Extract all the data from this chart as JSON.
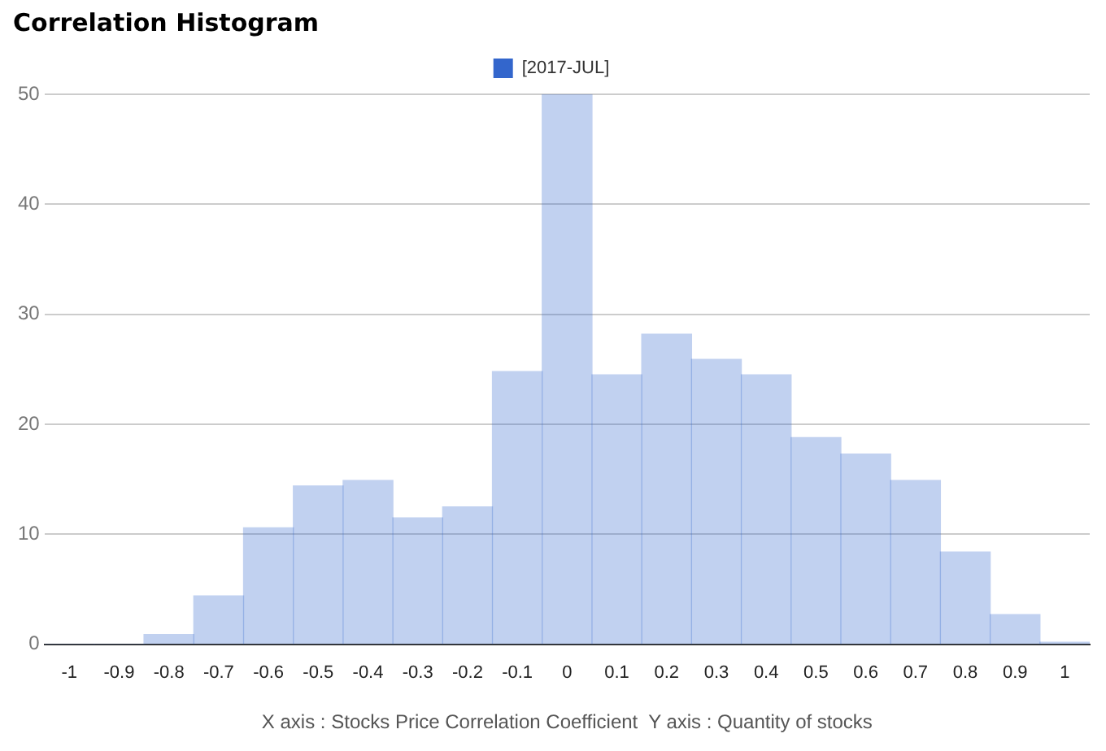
{
  "chart_data": {
    "type": "histogram",
    "title": "Correlation Histogram",
    "xlabel": "X axis : Stocks Price Correlation Coefficient  Y axis : Quantity of stocks",
    "bins": [
      -1.05,
      -0.95,
      -0.85,
      -0.75,
      -0.65,
      -0.55,
      -0.45,
      -0.35,
      -0.25,
      -0.15,
      -0.05,
      0.05,
      0.15,
      0.25,
      0.35,
      0.45,
      0.55,
      0.65,
      0.75,
      0.85,
      0.95,
      1.05
    ],
    "series": [
      {
        "name": "[2017-JUL]",
        "color": "#3366cc",
        "values": [
          0,
          0,
          0.9,
          4.4,
          10.6,
          14.4,
          14.9,
          11.5,
          12.5,
          24.8,
          50,
          24.5,
          28.2,
          25.9,
          24.5,
          18.8,
          17.3,
          14.9,
          8.4,
          2.7,
          0.2
        ]
      }
    ],
    "xlim": [
      -1.05,
      1.05
    ],
    "xticks": [
      -1,
      -0.9,
      -0.8,
      -0.7,
      -0.6,
      -0.5,
      -0.4,
      -0.3,
      -0.2,
      -0.1,
      0,
      0.1,
      0.2,
      0.3,
      0.4,
      0.5,
      0.6,
      0.7,
      0.8,
      0.9,
      1
    ],
    "ylim": [
      0,
      50
    ],
    "yticks": [
      0,
      10,
      20,
      30,
      40,
      50
    ],
    "grid": "y",
    "legend": "top"
  }
}
